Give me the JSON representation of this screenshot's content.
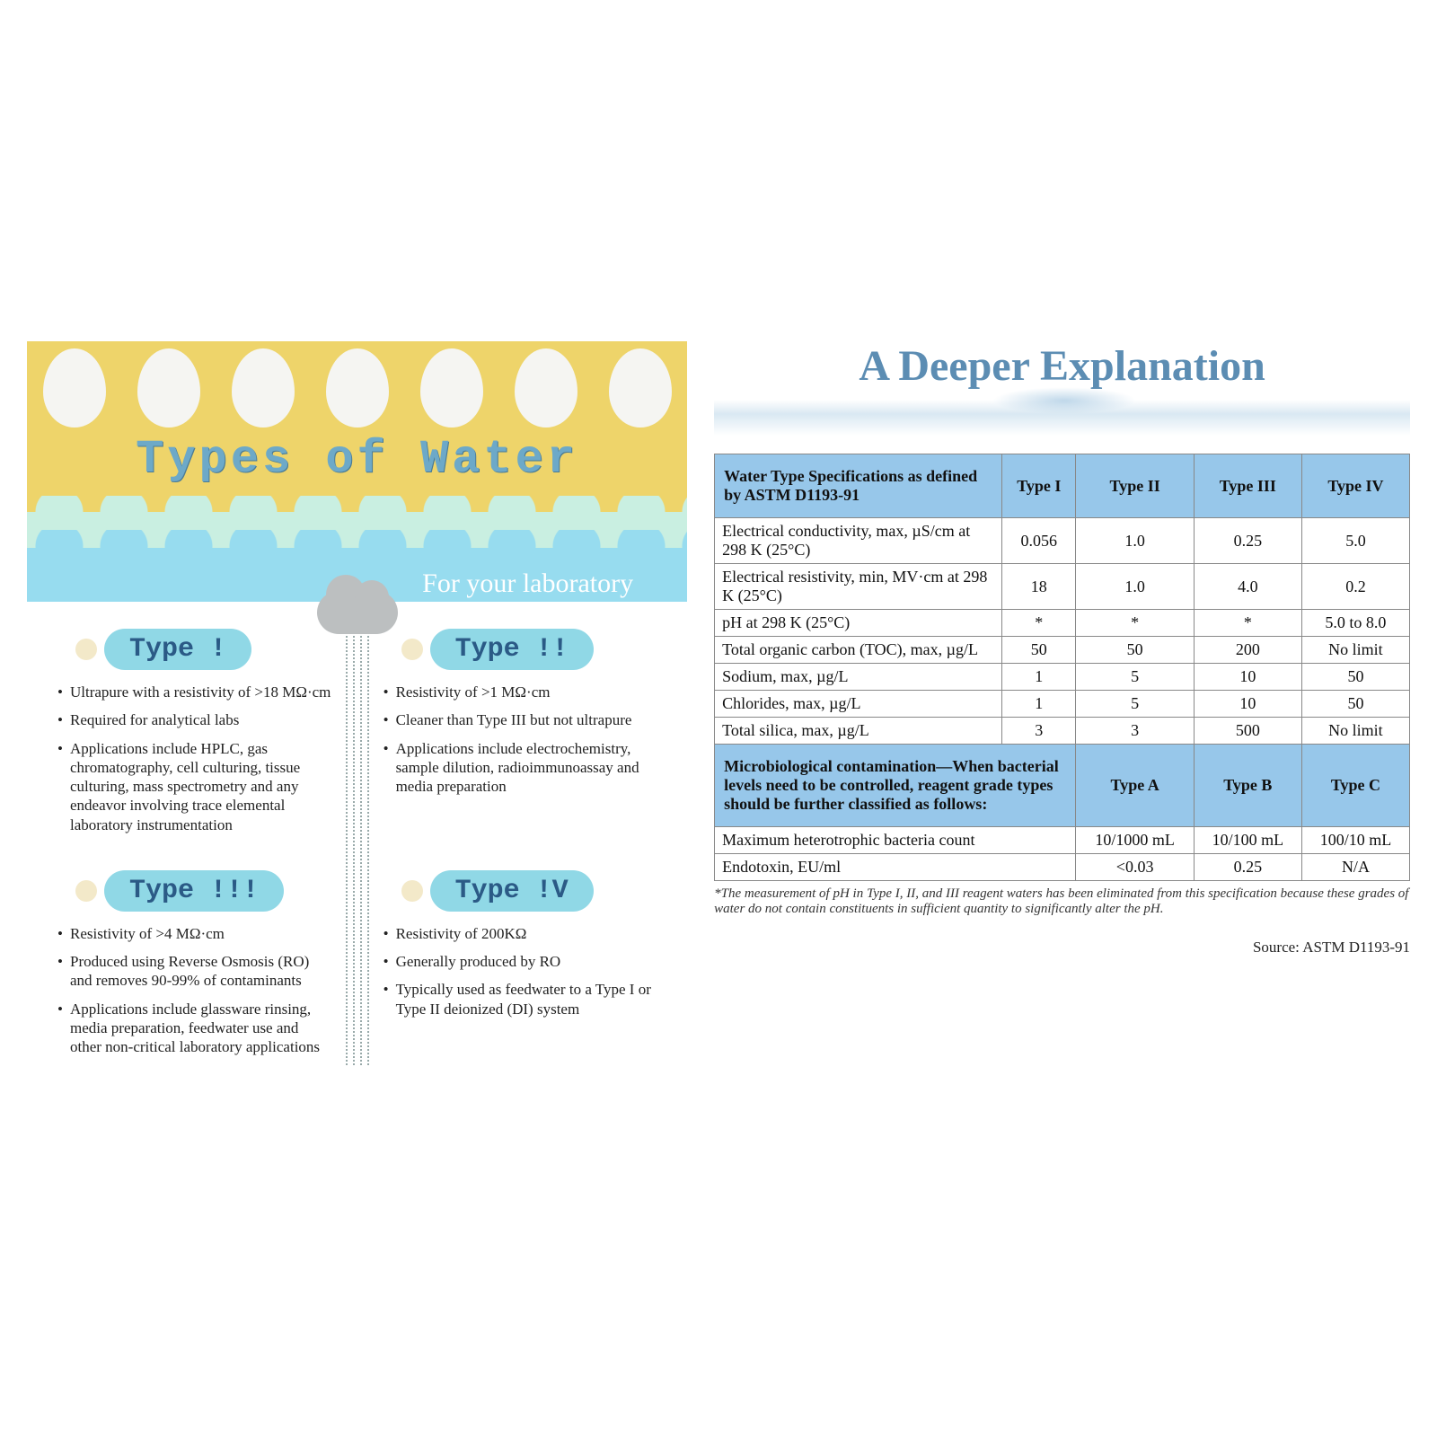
{
  "left": {
    "title": "Types of Water",
    "subtitle": "For your laboratory",
    "colors": {
      "yellow": "#eed46a",
      "mint": "#c9efe1",
      "sky": "#97dcef",
      "badge_bg": "#90d8e6",
      "badge_text": "#2b5a86",
      "title_text": "#6da9c8"
    },
    "types": [
      {
        "badge": "Type !",
        "bullets": [
          "Ultrapure with a resistivity of >18 MΩ·cm",
          "Required for analytical labs",
          "Applications include HPLC, gas chromatography, cell culturing, tissue culturing, mass spectrometry and any endeavor involving trace elemental laboratory instrumentation"
        ]
      },
      {
        "badge": "Type !!",
        "bullets": [
          "Resistivity of >1 MΩ·cm",
          "Cleaner than Type III but not ultrapure",
          "Applications include electrochemistry, sample dilution, radioimmunoassay and media preparation"
        ]
      },
      {
        "badge": "Type !!!",
        "bullets": [
          "Resistivity of >4 MΩ·cm",
          "Produced using Reverse Osmosis (RO) and removes 90-99% of contaminants",
          "Applications include glassware rinsing, media preparation, feedwater use and other non-critical laboratory applications"
        ]
      },
      {
        "badge": "Type !V",
        "bullets": [
          "Resistivity of 200KΩ",
          "Generally produced by RO",
          "Typically used as feedwater to a Type I or Type II deionized (DI) system"
        ]
      }
    ]
  },
  "right": {
    "title": "A Deeper Explanation",
    "title_color": "#5c8db3",
    "header_bg": "#97c7ea",
    "spec_header": "Water Type Specifications as defined by ASTM D1193-91",
    "type_cols": [
      "Type I",
      "Type II",
      "Type III",
      "Type IV"
    ],
    "spec_rows": [
      {
        "label": "Electrical conductivity, max, µS/cm at 298 K (25°C)",
        "vals": [
          "0.056",
          "1.0",
          "0.25",
          "5.0"
        ]
      },
      {
        "label": "Electrical resistivity, min, MV·cm at 298 K (25°C)",
        "vals": [
          "18",
          "1.0",
          "4.0",
          "0.2"
        ]
      },
      {
        "label": "pH at 298 K (25°C)",
        "vals": [
          "*",
          "*",
          "*",
          "5.0 to 8.0"
        ]
      },
      {
        "label": "Total organic carbon (TOC), max, µg/L",
        "vals": [
          "50",
          "50",
          "200",
          "No limit"
        ]
      },
      {
        "label": "Sodium, max, µg/L",
        "vals": [
          "1",
          "5",
          "10",
          "50"
        ]
      },
      {
        "label": "Chlorides, max, µg/L",
        "vals": [
          "1",
          "5",
          "10",
          "50"
        ]
      },
      {
        "label": "Total silica, max, µg/L",
        "vals": [
          "3",
          "3",
          "500",
          "No limit"
        ]
      }
    ],
    "micro_header": "Microbiological contamination—When bacterial levels need to be controlled, reagent grade types should be further classified as follows:",
    "micro_cols": [
      "Type A",
      "Type B",
      "Type C"
    ],
    "micro_rows": [
      {
        "label": "Maximum heterotrophic bacteria count",
        "vals": [
          "10/1000 mL",
          "10/100 mL",
          "100/10 mL"
        ]
      },
      {
        "label": "Endotoxin, EU/ml",
        "vals": [
          "<0.03",
          "0.25",
          "N/A"
        ]
      }
    ],
    "footnote": "*The measurement of pH in Type I, II, and III reagent waters has been eliminated from this specification because these grades of water do not contain constituents in sufficient quantity to significantly alter the pH.",
    "source": "Source: ASTM D1193-91"
  }
}
